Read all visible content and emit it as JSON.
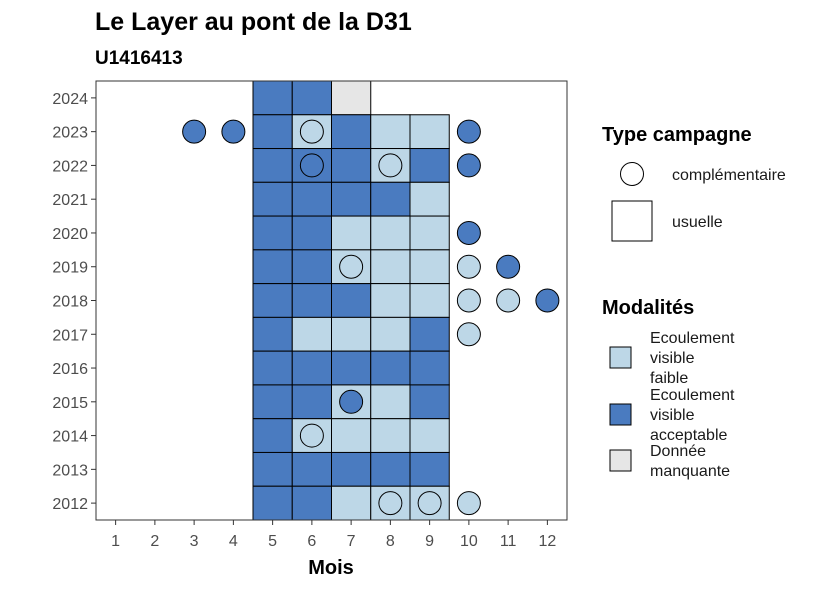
{
  "chart_data": {
    "type": "heatmap",
    "title": "Le Layer au pont de la D31",
    "subtitle": "U1416413",
    "xlabel": "Mois",
    "ylabel": "",
    "x_ticks": [
      "1",
      "2",
      "3",
      "4",
      "5",
      "6",
      "7",
      "8",
      "9",
      "10",
      "11",
      "12"
    ],
    "y_ticks": [
      "2012",
      "2013",
      "2014",
      "2015",
      "2016",
      "2017",
      "2018",
      "2019",
      "2020",
      "2021",
      "2022",
      "2023",
      "2024"
    ],
    "xlim": [
      0.5,
      12.5
    ],
    "ylim": [
      2011.5,
      2024.5
    ],
    "grid": false,
    "colors": {
      "faible": "#bdd7e7",
      "acceptable": "#4a7bc0",
      "manquante": "#e6e6e6"
    },
    "cells_usuelle": [
      {
        "year": 2024,
        "month": 5,
        "modalite": "acceptable"
      },
      {
        "year": 2024,
        "month": 6,
        "modalite": "acceptable"
      },
      {
        "year": 2024,
        "month": 7,
        "modalite": "manquante"
      },
      {
        "year": 2023,
        "month": 5,
        "modalite": "acceptable"
      },
      {
        "year": 2023,
        "month": 6,
        "modalite": "faible"
      },
      {
        "year": 2023,
        "month": 7,
        "modalite": "acceptable"
      },
      {
        "year": 2023,
        "month": 8,
        "modalite": "faible"
      },
      {
        "year": 2023,
        "month": 9,
        "modalite": "faible"
      },
      {
        "year": 2022,
        "month": 5,
        "modalite": "acceptable"
      },
      {
        "year": 2022,
        "month": 6,
        "modalite": "acceptable"
      },
      {
        "year": 2022,
        "month": 7,
        "modalite": "acceptable"
      },
      {
        "year": 2022,
        "month": 8,
        "modalite": "faible"
      },
      {
        "year": 2022,
        "month": 9,
        "modalite": "acceptable"
      },
      {
        "year": 2021,
        "month": 5,
        "modalite": "acceptable"
      },
      {
        "year": 2021,
        "month": 6,
        "modalite": "acceptable"
      },
      {
        "year": 2021,
        "month": 7,
        "modalite": "acceptable"
      },
      {
        "year": 2021,
        "month": 8,
        "modalite": "acceptable"
      },
      {
        "year": 2021,
        "month": 9,
        "modalite": "faible"
      },
      {
        "year": 2020,
        "month": 5,
        "modalite": "acceptable"
      },
      {
        "year": 2020,
        "month": 6,
        "modalite": "acceptable"
      },
      {
        "year": 2020,
        "month": 7,
        "modalite": "faible"
      },
      {
        "year": 2020,
        "month": 8,
        "modalite": "faible"
      },
      {
        "year": 2020,
        "month": 9,
        "modalite": "faible"
      },
      {
        "year": 2019,
        "month": 5,
        "modalite": "acceptable"
      },
      {
        "year": 2019,
        "month": 6,
        "modalite": "acceptable"
      },
      {
        "year": 2019,
        "month": 7,
        "modalite": "faible"
      },
      {
        "year": 2019,
        "month": 8,
        "modalite": "faible"
      },
      {
        "year": 2019,
        "month": 9,
        "modalite": "faible"
      },
      {
        "year": 2018,
        "month": 5,
        "modalite": "acceptable"
      },
      {
        "year": 2018,
        "month": 6,
        "modalite": "acceptable"
      },
      {
        "year": 2018,
        "month": 7,
        "modalite": "acceptable"
      },
      {
        "year": 2018,
        "month": 8,
        "modalite": "faible"
      },
      {
        "year": 2018,
        "month": 9,
        "modalite": "faible"
      },
      {
        "year": 2017,
        "month": 5,
        "modalite": "acceptable"
      },
      {
        "year": 2017,
        "month": 6,
        "modalite": "faible"
      },
      {
        "year": 2017,
        "month": 7,
        "modalite": "faible"
      },
      {
        "year": 2017,
        "month": 8,
        "modalite": "faible"
      },
      {
        "year": 2017,
        "month": 9,
        "modalite": "acceptable"
      },
      {
        "year": 2016,
        "month": 5,
        "modalite": "acceptable"
      },
      {
        "year": 2016,
        "month": 6,
        "modalite": "acceptable"
      },
      {
        "year": 2016,
        "month": 7,
        "modalite": "acceptable"
      },
      {
        "year": 2016,
        "month": 8,
        "modalite": "acceptable"
      },
      {
        "year": 2016,
        "month": 9,
        "modalite": "acceptable"
      },
      {
        "year": 2015,
        "month": 5,
        "modalite": "acceptable"
      },
      {
        "year": 2015,
        "month": 6,
        "modalite": "acceptable"
      },
      {
        "year": 2015,
        "month": 7,
        "modalite": "faible"
      },
      {
        "year": 2015,
        "month": 8,
        "modalite": "faible"
      },
      {
        "year": 2015,
        "month": 9,
        "modalite": "acceptable"
      },
      {
        "year": 2014,
        "month": 5,
        "modalite": "acceptable"
      },
      {
        "year": 2014,
        "month": 6,
        "modalite": "faible"
      },
      {
        "year": 2014,
        "month": 7,
        "modalite": "faible"
      },
      {
        "year": 2014,
        "month": 8,
        "modalite": "faible"
      },
      {
        "year": 2014,
        "month": 9,
        "modalite": "faible"
      },
      {
        "year": 2013,
        "month": 5,
        "modalite": "acceptable"
      },
      {
        "year": 2013,
        "month": 6,
        "modalite": "acceptable"
      },
      {
        "year": 2013,
        "month": 7,
        "modalite": "acceptable"
      },
      {
        "year": 2013,
        "month": 8,
        "modalite": "acceptable"
      },
      {
        "year": 2013,
        "month": 9,
        "modalite": "acceptable"
      },
      {
        "year": 2012,
        "month": 5,
        "modalite": "acceptable"
      },
      {
        "year": 2012,
        "month": 6,
        "modalite": "acceptable"
      },
      {
        "year": 2012,
        "month": 7,
        "modalite": "faible"
      },
      {
        "year": 2012,
        "month": 8,
        "modalite": "faible"
      },
      {
        "year": 2012,
        "month": 9,
        "modalite": "faible"
      }
    ],
    "points_complementaire": [
      {
        "year": 2023,
        "month": 3,
        "modalite": "acceptable"
      },
      {
        "year": 2023,
        "month": 4,
        "modalite": "acceptable"
      },
      {
        "year": 2023,
        "month": 6,
        "modalite": "faible"
      },
      {
        "year": 2023,
        "month": 10,
        "modalite": "acceptable"
      },
      {
        "year": 2022,
        "month": 6,
        "modalite": "acceptable"
      },
      {
        "year": 2022,
        "month": 8,
        "modalite": "faible"
      },
      {
        "year": 2022,
        "month": 10,
        "modalite": "acceptable"
      },
      {
        "year": 2020,
        "month": 10,
        "modalite": "acceptable"
      },
      {
        "year": 2019,
        "month": 7,
        "modalite": "faible"
      },
      {
        "year": 2019,
        "month": 10,
        "modalite": "faible"
      },
      {
        "year": 2019,
        "month": 11,
        "modalite": "acceptable"
      },
      {
        "year": 2018,
        "month": 10,
        "modalite": "faible"
      },
      {
        "year": 2018,
        "month": 11,
        "modalite": "faible"
      },
      {
        "year": 2018,
        "month": 12,
        "modalite": "acceptable"
      },
      {
        "year": 2017,
        "month": 10,
        "modalite": "faible"
      },
      {
        "year": 2015,
        "month": 7,
        "modalite": "acceptable"
      },
      {
        "year": 2014,
        "month": 6,
        "modalite": "faible"
      },
      {
        "year": 2012,
        "month": 8,
        "modalite": "faible"
      },
      {
        "year": 2012,
        "month": 9,
        "modalite": "faible"
      },
      {
        "year": 2012,
        "month": 10,
        "modalite": "faible"
      }
    ],
    "legend_type": {
      "title": "Type campagne",
      "items": [
        {
          "label": "complémentaire",
          "shape": "circle"
        },
        {
          "label": "usuelle",
          "shape": "square"
        }
      ]
    },
    "legend_modalites": {
      "title": "Modalités",
      "items": [
        {
          "key": "faible",
          "lines": [
            "Ecoulement",
            "visible",
            "faible"
          ]
        },
        {
          "key": "acceptable",
          "lines": [
            "Ecoulement",
            "visible",
            "acceptable"
          ]
        },
        {
          "key": "manquante",
          "lines": [
            "Donnée",
            "manquante"
          ]
        }
      ]
    }
  }
}
